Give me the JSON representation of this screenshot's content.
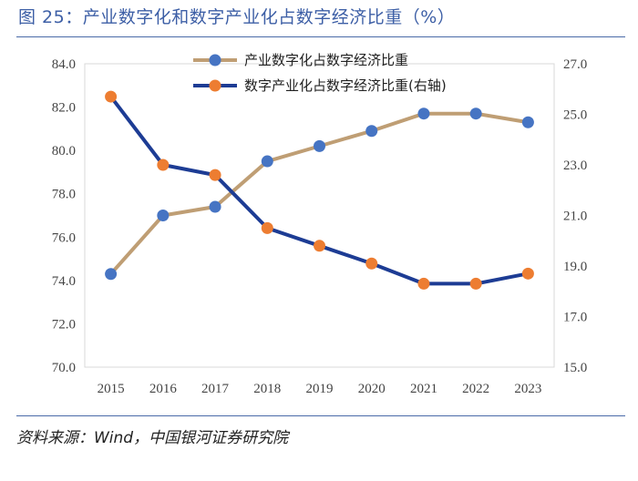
{
  "title": "图 25：产业数字化和数字产业化占数字经济比重（%）",
  "source": "资料来源：Wind，中国银河证券研究院",
  "colors": {
    "title": "#3d5fa6",
    "series1_line": "#bf9e74",
    "series1_marker": "#4674c3",
    "series2_line": "#1d3c94",
    "series2_marker": "#ed7d31"
  },
  "chart_data": {
    "type": "line",
    "title": "产业数字化和数字产业化占数字经济比重（%）",
    "categories": [
      "2015",
      "2016",
      "2017",
      "2018",
      "2019",
      "2020",
      "2021",
      "2022",
      "2023"
    ],
    "y_left": {
      "ylim": [
        70,
        84
      ],
      "ticks": [
        "70.0",
        "72.0",
        "74.0",
        "76.0",
        "78.0",
        "80.0",
        "82.0",
        "84.0"
      ]
    },
    "y_right": {
      "ylim": [
        15,
        27
      ],
      "ticks": [
        "15.0",
        "17.0",
        "19.0",
        "21.0",
        "23.0",
        "25.0",
        "27.0"
      ]
    },
    "series": [
      {
        "name": "产业数字化占数字经济比重",
        "axis": "left",
        "values": [
          74.3,
          77.0,
          77.4,
          79.5,
          80.2,
          80.9,
          81.7,
          81.7,
          81.3
        ]
      },
      {
        "name": "数字产业化占数字经济比重(右轴)",
        "axis": "right",
        "values": [
          25.7,
          23.0,
          22.6,
          20.5,
          19.8,
          19.1,
          18.3,
          18.3,
          18.7
        ]
      }
    ],
    "legend_position": "top-right",
    "grid": false
  }
}
